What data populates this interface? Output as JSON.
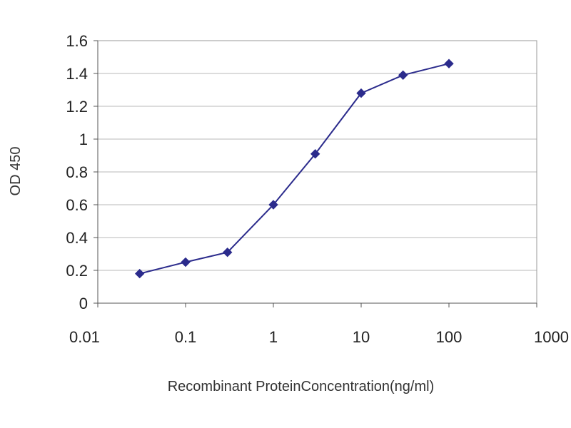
{
  "chart_data": {
    "type": "line",
    "title": "",
    "xlabel": "Recombinant ProteinConcentration(ng/ml)",
    "ylabel": "OD 450",
    "x_scale": "log",
    "xlim": [
      0.01,
      1000
    ],
    "ylim": [
      0,
      1.6
    ],
    "x_ticks": [
      0.01,
      0.1,
      1,
      10,
      100,
      1000
    ],
    "x_tick_labels": [
      "0.01",
      "0.1",
      "1",
      "10",
      "100",
      "1000"
    ],
    "y_ticks": [
      0,
      0.2,
      0.4,
      0.6,
      0.8,
      1,
      1.2,
      1.4,
      1.6
    ],
    "y_tick_labels": [
      "0",
      "0.2",
      "0.4",
      "0.6",
      "0.8",
      "1",
      "1.2",
      "1.4",
      "1.6"
    ],
    "grid": "horizontal",
    "legend": "none",
    "line_color": "#2b2b8c",
    "marker": "diamond",
    "series": [
      {
        "x": [
          0.03,
          0.1,
          0.3,
          1,
          3,
          10,
          30,
          100
        ],
        "values": [
          0.18,
          0.25,
          0.31,
          0.6,
          0.91,
          1.28,
          1.39,
          1.46
        ]
      }
    ]
  }
}
